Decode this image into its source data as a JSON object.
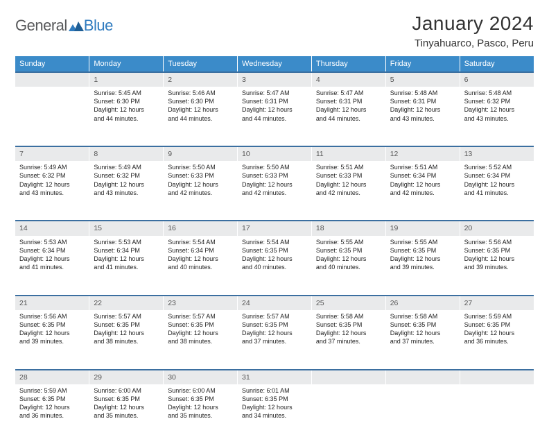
{
  "logo": {
    "general": "General",
    "blue": "Blue"
  },
  "title": "January 2024",
  "location": "Tinyahuarco, Pasco, Peru",
  "colors": {
    "header_bg": "#3b8bc9",
    "header_text": "#ffffff",
    "daynum_bg": "#e9eaeb",
    "rule": "#3b6fa0",
    "logo_gray": "#58595b",
    "logo_blue": "#2f7bbf"
  },
  "day_headers": [
    "Sunday",
    "Monday",
    "Tuesday",
    "Wednesday",
    "Thursday",
    "Friday",
    "Saturday"
  ],
  "weeks": [
    {
      "nums": [
        "",
        "1",
        "2",
        "3",
        "4",
        "5",
        "6"
      ],
      "cells": [
        {
          "empty": true
        },
        {
          "sunrise": "Sunrise: 5:45 AM",
          "sunset": "Sunset: 6:30 PM",
          "day1": "Daylight: 12 hours",
          "day2": "and 44 minutes."
        },
        {
          "sunrise": "Sunrise: 5:46 AM",
          "sunset": "Sunset: 6:30 PM",
          "day1": "Daylight: 12 hours",
          "day2": "and 44 minutes."
        },
        {
          "sunrise": "Sunrise: 5:47 AM",
          "sunset": "Sunset: 6:31 PM",
          "day1": "Daylight: 12 hours",
          "day2": "and 44 minutes."
        },
        {
          "sunrise": "Sunrise: 5:47 AM",
          "sunset": "Sunset: 6:31 PM",
          "day1": "Daylight: 12 hours",
          "day2": "and 44 minutes."
        },
        {
          "sunrise": "Sunrise: 5:48 AM",
          "sunset": "Sunset: 6:31 PM",
          "day1": "Daylight: 12 hours",
          "day2": "and 43 minutes."
        },
        {
          "sunrise": "Sunrise: 5:48 AM",
          "sunset": "Sunset: 6:32 PM",
          "day1": "Daylight: 12 hours",
          "day2": "and 43 minutes."
        }
      ]
    },
    {
      "nums": [
        "7",
        "8",
        "9",
        "10",
        "11",
        "12",
        "13"
      ],
      "cells": [
        {
          "sunrise": "Sunrise: 5:49 AM",
          "sunset": "Sunset: 6:32 PM",
          "day1": "Daylight: 12 hours",
          "day2": "and 43 minutes."
        },
        {
          "sunrise": "Sunrise: 5:49 AM",
          "sunset": "Sunset: 6:32 PM",
          "day1": "Daylight: 12 hours",
          "day2": "and 43 minutes."
        },
        {
          "sunrise": "Sunrise: 5:50 AM",
          "sunset": "Sunset: 6:33 PM",
          "day1": "Daylight: 12 hours",
          "day2": "and 42 minutes."
        },
        {
          "sunrise": "Sunrise: 5:50 AM",
          "sunset": "Sunset: 6:33 PM",
          "day1": "Daylight: 12 hours",
          "day2": "and 42 minutes."
        },
        {
          "sunrise": "Sunrise: 5:51 AM",
          "sunset": "Sunset: 6:33 PM",
          "day1": "Daylight: 12 hours",
          "day2": "and 42 minutes."
        },
        {
          "sunrise": "Sunrise: 5:51 AM",
          "sunset": "Sunset: 6:34 PM",
          "day1": "Daylight: 12 hours",
          "day2": "and 42 minutes."
        },
        {
          "sunrise": "Sunrise: 5:52 AM",
          "sunset": "Sunset: 6:34 PM",
          "day1": "Daylight: 12 hours",
          "day2": "and 41 minutes."
        }
      ]
    },
    {
      "nums": [
        "14",
        "15",
        "16",
        "17",
        "18",
        "19",
        "20"
      ],
      "cells": [
        {
          "sunrise": "Sunrise: 5:53 AM",
          "sunset": "Sunset: 6:34 PM",
          "day1": "Daylight: 12 hours",
          "day2": "and 41 minutes."
        },
        {
          "sunrise": "Sunrise: 5:53 AM",
          "sunset": "Sunset: 6:34 PM",
          "day1": "Daylight: 12 hours",
          "day2": "and 41 minutes."
        },
        {
          "sunrise": "Sunrise: 5:54 AM",
          "sunset": "Sunset: 6:34 PM",
          "day1": "Daylight: 12 hours",
          "day2": "and 40 minutes."
        },
        {
          "sunrise": "Sunrise: 5:54 AM",
          "sunset": "Sunset: 6:35 PM",
          "day1": "Daylight: 12 hours",
          "day2": "and 40 minutes."
        },
        {
          "sunrise": "Sunrise: 5:55 AM",
          "sunset": "Sunset: 6:35 PM",
          "day1": "Daylight: 12 hours",
          "day2": "and 40 minutes."
        },
        {
          "sunrise": "Sunrise: 5:55 AM",
          "sunset": "Sunset: 6:35 PM",
          "day1": "Daylight: 12 hours",
          "day2": "and 39 minutes."
        },
        {
          "sunrise": "Sunrise: 5:56 AM",
          "sunset": "Sunset: 6:35 PM",
          "day1": "Daylight: 12 hours",
          "day2": "and 39 minutes."
        }
      ]
    },
    {
      "nums": [
        "21",
        "22",
        "23",
        "24",
        "25",
        "26",
        "27"
      ],
      "cells": [
        {
          "sunrise": "Sunrise: 5:56 AM",
          "sunset": "Sunset: 6:35 PM",
          "day1": "Daylight: 12 hours",
          "day2": "and 39 minutes."
        },
        {
          "sunrise": "Sunrise: 5:57 AM",
          "sunset": "Sunset: 6:35 PM",
          "day1": "Daylight: 12 hours",
          "day2": "and 38 minutes."
        },
        {
          "sunrise": "Sunrise: 5:57 AM",
          "sunset": "Sunset: 6:35 PM",
          "day1": "Daylight: 12 hours",
          "day2": "and 38 minutes."
        },
        {
          "sunrise": "Sunrise: 5:57 AM",
          "sunset": "Sunset: 6:35 PM",
          "day1": "Daylight: 12 hours",
          "day2": "and 37 minutes."
        },
        {
          "sunrise": "Sunrise: 5:58 AM",
          "sunset": "Sunset: 6:35 PM",
          "day1": "Daylight: 12 hours",
          "day2": "and 37 minutes."
        },
        {
          "sunrise": "Sunrise: 5:58 AM",
          "sunset": "Sunset: 6:35 PM",
          "day1": "Daylight: 12 hours",
          "day2": "and 37 minutes."
        },
        {
          "sunrise": "Sunrise: 5:59 AM",
          "sunset": "Sunset: 6:35 PM",
          "day1": "Daylight: 12 hours",
          "day2": "and 36 minutes."
        }
      ]
    },
    {
      "nums": [
        "28",
        "29",
        "30",
        "31",
        "",
        "",
        ""
      ],
      "cells": [
        {
          "sunrise": "Sunrise: 5:59 AM",
          "sunset": "Sunset: 6:35 PM",
          "day1": "Daylight: 12 hours",
          "day2": "and 36 minutes."
        },
        {
          "sunrise": "Sunrise: 6:00 AM",
          "sunset": "Sunset: 6:35 PM",
          "day1": "Daylight: 12 hours",
          "day2": "and 35 minutes."
        },
        {
          "sunrise": "Sunrise: 6:00 AM",
          "sunset": "Sunset: 6:35 PM",
          "day1": "Daylight: 12 hours",
          "day2": "and 35 minutes."
        },
        {
          "sunrise": "Sunrise: 6:01 AM",
          "sunset": "Sunset: 6:35 PM",
          "day1": "Daylight: 12 hours",
          "day2": "and 34 minutes."
        },
        {
          "empty": true
        },
        {
          "empty": true
        },
        {
          "empty": true
        }
      ]
    }
  ]
}
